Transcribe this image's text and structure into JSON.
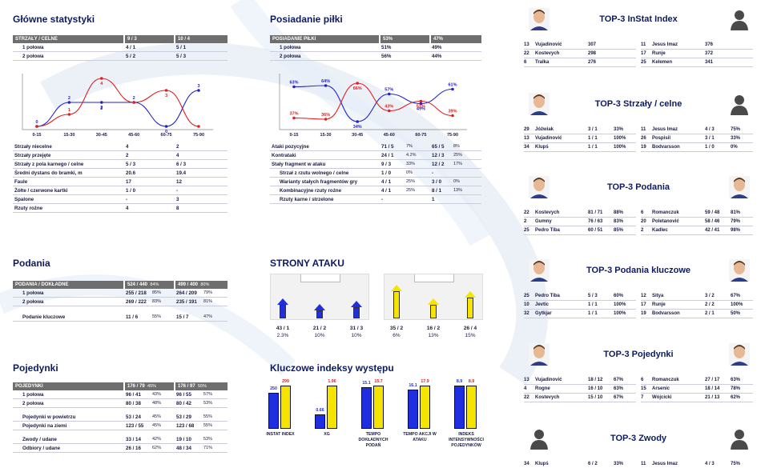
{
  "main_stats": {
    "title": "Główne statystyki",
    "header": {
      "label": "STRZAŁY / CELNE",
      "a": "9 / 3",
      "b": "10 / 4"
    },
    "rows": [
      {
        "label": "1 połowa",
        "a": "4 / 1",
        "b": "5 / 1"
      },
      {
        "label": "2 połowa",
        "a": "5 / 2",
        "b": "5 / 3"
      }
    ],
    "chart_data": {
      "type": "line",
      "categories": [
        "0-15",
        "15-30",
        "30-45",
        "45-60",
        "60-75",
        "75-90"
      ],
      "series": [
        {
          "values": [
            0,
            2,
            2,
            2,
            0,
            3
          ],
          "color": "#2222cc"
        },
        {
          "values": [
            0,
            1,
            4,
            2,
            3,
            0
          ],
          "color": "#e02020"
        }
      ],
      "point_labels": [
        {
          "values": [
            "0",
            "2",
            "2",
            "2",
            "0",
            "3"
          ]
        },
        {
          "values": [
            "",
            "1",
            "4",
            "",
            "3",
            ""
          ]
        }
      ],
      "extra_labels": [
        "",
        "",
        "2",
        "",
        "",
        ""
      ],
      "ylim": [
        0,
        4
      ]
    },
    "rows2": [
      {
        "label": "Strzały niecelne",
        "a": "4",
        "b": "2"
      },
      {
        "label": "Strzały przejęte",
        "a": "2",
        "b": "4"
      },
      {
        "label": "Strzały z pola karnego / celne",
        "a": "5 / 3",
        "b": "6 / 3"
      },
      {
        "label": "Średni dystans do bramki, m",
        "a": "20.6",
        "b": "19.4"
      },
      {
        "label": "Faule",
        "a": "17",
        "b": "12"
      },
      {
        "label": "Żółte / czerwone kartki",
        "a": "1 / 0",
        "b": "-"
      },
      {
        "label": "Spalone",
        "a": "-",
        "b": "3"
      },
      {
        "label": "Rzuty rożne",
        "a": "4",
        "b": "8"
      }
    ]
  },
  "possession": {
    "title": "Posiadanie piłki",
    "header": {
      "label": "POSIADANIE PIŁKI",
      "a": "53%",
      "b": "47%"
    },
    "rows": [
      {
        "label": "1 połowa",
        "a": "51%",
        "b": "49%"
      },
      {
        "label": "2 połowa",
        "a": "56%",
        "b": "44%"
      }
    ],
    "chart_data": {
      "type": "line",
      "categories": [
        "0-15",
        "15-30",
        "30-45",
        "45-60",
        "60-75",
        "75-90"
      ],
      "series": [
        {
          "values": [
            63,
            64,
            34,
            57,
            49,
            61
          ],
          "color": "#2222cc"
        },
        {
          "values": [
            37,
            36,
            66,
            43,
            51,
            39
          ],
          "color": "#e02020"
        }
      ],
      "point_labels": [
        {
          "values": [
            "63%",
            "64%",
            "34%",
            "57%",
            "49%",
            "61%"
          ]
        },
        {
          "values": [
            "37%",
            "36%",
            "66%",
            "43%",
            "51%",
            "39%"
          ]
        }
      ],
      "ylim": [
        30,
        70
      ]
    },
    "rows2": [
      {
        "label": "Ataki pozycyjne",
        "a": "71 / 5",
        "ap": "7%",
        "b": "65 / 5",
        "bp": "8%",
        "indent": false
      },
      {
        "label": "Kontrataki",
        "a": "24 / 1",
        "ap": "4.2%",
        "b": "12 / 3",
        "bp": "25%",
        "indent": false
      },
      {
        "label": "Stały fragment w ataku",
        "a": "9 / 3",
        "ap": "33%",
        "b": "12 / 2",
        "bp": "17%",
        "indent": false
      },
      {
        "label": "Strzał z rzutu wolnego / celne",
        "a": "1 / 0",
        "ap": "0%",
        "b": "-",
        "bp": "",
        "indent": true
      },
      {
        "label": "Warianty stałych fragmentów gry",
        "a": "4 / 1",
        "ap": "25%",
        "b": "3 / 0",
        "bp": "0%",
        "indent": true
      },
      {
        "label": "Kombinacyjne rzuty rożne",
        "a": "4 / 1",
        "ap": "25%",
        "b": "8 / 1",
        "bp": "13%",
        "indent": true
      },
      {
        "label": "Rzuty karne / strzelone",
        "a": "-",
        "ap": "",
        "b": "1",
        "bp": "",
        "indent": true
      }
    ]
  },
  "passes": {
    "title": "Podania",
    "header": {
      "label": "PODANIA / DOKŁADNE",
      "a": "524 / 440",
      "ap": "84%",
      "b": "499 / 400",
      "bp": "80%"
    },
    "rows": [
      {
        "label": "1 połowa",
        "a": "255 / 218",
        "ap": "85%",
        "b": "264 / 209",
        "bp": "79%"
      },
      {
        "label": "2 połowa",
        "a": "269 / 222",
        "ap": "83%",
        "b": "235 / 191",
        "bp": "81%"
      },
      {
        "label": "Podanie kluczowe",
        "a": "11 / 6",
        "ap": "55%",
        "b": "15 / 7",
        "bp": "47%"
      }
    ]
  },
  "attack_sides": {
    "title": "STRONY ATAKU",
    "teams": [
      {
        "color": "#1f2fe0",
        "items": [
          {
            "value": "43 / 1",
            "pct": "2.3%",
            "fill": 0.35
          },
          {
            "value": "21 / 2",
            "pct": "10%",
            "fill": 0.2
          },
          {
            "value": "31 / 3",
            "pct": "10%",
            "fill": 0.3
          }
        ]
      },
      {
        "color": "#f5e400",
        "items": [
          {
            "value": "35 / 2",
            "pct": "6%",
            "fill": 0.7
          },
          {
            "value": "16 / 2",
            "pct": "13%",
            "fill": 0.35
          },
          {
            "value": "26 / 4",
            "pct": "15%",
            "fill": 0.55
          }
        ]
      }
    ]
  },
  "duels": {
    "title": "Pojedynki",
    "header": {
      "label": "POJEDYNKI",
      "a": "176 / 79",
      "ap": "45%",
      "b": "176 / 97",
      "bp": "55%"
    },
    "rows": [
      {
        "label": "1 połowa",
        "a": "96 / 41",
        "ap": "43%",
        "b": "96 / 55",
        "bp": "57%",
        "gap": false
      },
      {
        "label": "2 połowa",
        "a": "80 / 38",
        "ap": "48%",
        "b": "80 / 42",
        "bp": "53%",
        "gap": false
      },
      {
        "label": "Pojedynki w powietrzu",
        "a": "53 / 24",
        "ap": "45%",
        "b": "53 / 29",
        "bp": "55%",
        "gap": true
      },
      {
        "label": "Pojedynki na ziemi",
        "a": "123 / 55",
        "ap": "45%",
        "b": "123 / 68",
        "bp": "55%",
        "gap": false
      },
      {
        "label": "Zwody / udane",
        "a": "33 / 14",
        "ap": "42%",
        "b": "19 / 10",
        "bp": "53%",
        "gap": true
      },
      {
        "label": "Odbiory / udane",
        "a": "26 / 16",
        "ap": "62%",
        "b": "48 / 34",
        "bp": "71%",
        "gap": false
      }
    ]
  },
  "key_indexes": {
    "title": "Kluczowe indeksy występu",
    "items": [
      {
        "label": "INSTAT INDEX",
        "a": 250,
        "al": "250",
        "b": 299,
        "bl": "299",
        "max": 299
      },
      {
        "label": "XG",
        "a": 0.66,
        "al": "0.66",
        "b": 1.96,
        "bl": "1.96",
        "max": 1.96
      },
      {
        "label": "TEMPO DOKŁADNYCH PODAŃ",
        "a": 15.1,
        "al": "15.1",
        "b": 15.7,
        "bl": "15.7",
        "max": 15.7
      },
      {
        "label": "TEMPO AKCJI W ATAKU",
        "a": 16.1,
        "al": "16.1",
        "b": 17.9,
        "bl": "17.9",
        "max": 17.9
      },
      {
        "label": "INDEKS INTENSYWNOŚCI POJEDYNKÓW",
        "a": 8.9,
        "al": "8.9",
        "b": 8.9,
        "bl": "8.9",
        "max": 8.9
      }
    ]
  },
  "top3": [
    {
      "title": "TOP-3 InStat Index",
      "photo_left": true,
      "photo_right": false,
      "left": [
        {
          "n": "13",
          "name": "Vujadinović",
          "v": "307",
          "p": ""
        },
        {
          "n": "22",
          "name": "Kostevych",
          "v": "298",
          "p": ""
        },
        {
          "n": "6",
          "name": "Tralka",
          "v": "276",
          "p": ""
        }
      ],
      "right": [
        {
          "n": "11",
          "name": "Jesus Imaz",
          "v": "376",
          "p": ""
        },
        {
          "n": "17",
          "name": "Runje",
          "v": "372",
          "p": ""
        },
        {
          "n": "25",
          "name": "Kelemen",
          "v": "341",
          "p": ""
        }
      ]
    },
    {
      "title": "TOP-3 Strzały / celne",
      "photo_left": true,
      "photo_right": false,
      "left": [
        {
          "n": "29",
          "name": "Jóźwiak",
          "v": "3 / 1",
          "p": "33%"
        },
        {
          "n": "13",
          "name": "Vujadinović",
          "v": "1 / 1",
          "p": "100%"
        },
        {
          "n": "34",
          "name": "Klupś",
          "v": "1 / 1",
          "p": "100%"
        }
      ],
      "right": [
        {
          "n": "11",
          "name": "Jesus Imaz",
          "v": "4 / 3",
          "p": "75%"
        },
        {
          "n": "26",
          "name": "Pospisil",
          "v": "3 / 1",
          "p": "33%"
        },
        {
          "n": "19",
          "name": "Bodvarsson",
          "v": "1 / 0",
          "p": "0%"
        }
      ]
    },
    {
      "title": "TOP-3 Podania",
      "photo_left": true,
      "photo_right": true,
      "left": [
        {
          "n": "22",
          "name": "Kostevych",
          "v": "81 / 71",
          "p": "88%"
        },
        {
          "n": "2",
          "name": "Gumny",
          "v": "76 / 63",
          "p": "83%"
        },
        {
          "n": "25",
          "name": "Pedro Tiba",
          "v": "60 / 51",
          "p": "85%"
        }
      ],
      "right": [
        {
          "n": "6",
          "name": "Romanczuk",
          "v": "59 / 48",
          "p": "81%"
        },
        {
          "n": "20",
          "name": "Poletanović",
          "v": "58 / 46",
          "p": "79%"
        },
        {
          "n": "2",
          "name": "Kadlec",
          "v": "42 / 41",
          "p": "98%"
        }
      ]
    },
    {
      "title": "TOP-3 Podania kluczowe",
      "photo_left": true,
      "photo_right": true,
      "left": [
        {
          "n": "25",
          "name": "Pedro Tiba",
          "v": "5 / 3",
          "p": "60%"
        },
        {
          "n": "10",
          "name": "Jevtic",
          "v": "1 / 1",
          "p": "100%"
        },
        {
          "n": "32",
          "name": "Gytkjar",
          "v": "1 / 1",
          "p": "100%"
        }
      ],
      "right": [
        {
          "n": "12",
          "name": "Sitya",
          "v": "3 / 2",
          "p": "67%"
        },
        {
          "n": "17",
          "name": "Runje",
          "v": "2 / 2",
          "p": "100%"
        },
        {
          "n": "19",
          "name": "Bodvarsson",
          "v": "2 / 1",
          "p": "50%"
        }
      ]
    },
    {
      "title": "TOP-3 Pojedynki",
      "photo_left": true,
      "photo_right": true,
      "left": [
        {
          "n": "13",
          "name": "Vujadinović",
          "v": "18 / 12",
          "p": "67%"
        },
        {
          "n": "4",
          "name": "Rogne",
          "v": "16 / 10",
          "p": "63%"
        },
        {
          "n": "22",
          "name": "Kostevych",
          "v": "15 / 10",
          "p": "67%"
        }
      ],
      "right": [
        {
          "n": "6",
          "name": "Romanczuk",
          "v": "27 / 17",
          "p": "63%"
        },
        {
          "n": "15",
          "name": "Arsenic",
          "v": "18 / 14",
          "p": "78%"
        },
        {
          "n": "7",
          "name": "Wójcicki",
          "v": "21 / 13",
          "p": "62%"
        }
      ]
    },
    {
      "title": "TOP-3 Zwody",
      "photo_left": false,
      "photo_right": false,
      "left": [
        {
          "n": "34",
          "name": "Klupś",
          "v": "6 / 2",
          "p": "33%"
        }
      ],
      "right": [
        {
          "n": "11",
          "name": "Jesus Imaz",
          "v": "4 / 3",
          "p": "75%"
        }
      ]
    }
  ]
}
